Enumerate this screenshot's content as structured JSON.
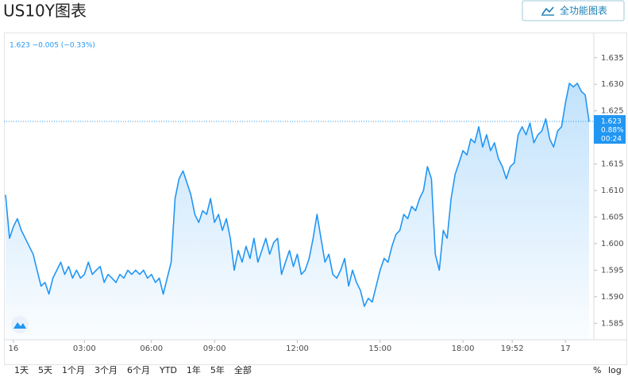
{
  "header": {
    "title": "US10Y图表",
    "button_label": "全功能图表"
  },
  "toolbar": {
    "ranges": [
      "1天",
      "5天",
      "1个月",
      "3个月",
      "6个月",
      "YTD",
      "1年",
      "5年",
      "全部"
    ],
    "percent": "%",
    "log": "log"
  },
  "chart_data": {
    "type": "line",
    "legend_text": "1.623 −0.005 (−0.33%)",
    "price_tag": [
      "1.623",
      "0.88%",
      "00:24"
    ],
    "xlim": [
      -0.4,
      149.2
    ],
    "xticks": [
      {
        "value": 2,
        "label": "16"
      },
      {
        "value": 20,
        "label": "03:00"
      },
      {
        "value": 37,
        "label": "06:00"
      },
      {
        "value": 53,
        "label": "09:00"
      },
      {
        "value": 74,
        "label": "12:00"
      },
      {
        "value": 95,
        "label": "15:00"
      },
      {
        "value": 116,
        "label": "18:00"
      },
      {
        "value": 128.5,
        "label": "19:52"
      },
      {
        "value": 142,
        "label": "17"
      }
    ],
    "ylim": [
      1.5819,
      1.6396
    ],
    "yticks": [
      1.585,
      {
        "value": 1.59,
        "label": "1.590"
      },
      1.595,
      {
        "value": 1.6,
        "label": "1.600"
      },
      1.605,
      {
        "value": 1.61,
        "label": "1.610"
      },
      1.615,
      {
        "value": 1.62,
        "label": "1.620"
      },
      1.625,
      {
        "value": 1.63,
        "label": "1.630"
      },
      1.635
    ],
    "series": [
      {
        "name": "US10Y",
        "color": "#2196f3",
        "values": [
          1.6092,
          1.601,
          1.6032,
          1.6047,
          1.6025,
          1.601,
          1.5995,
          1.598,
          1.595,
          1.592,
          1.5927,
          1.5905,
          1.5935,
          1.595,
          1.5965,
          1.5942,
          1.5957,
          1.5935,
          1.595,
          1.5935,
          1.5942,
          1.5965,
          1.5942,
          1.595,
          1.5957,
          1.5927,
          1.5942,
          1.5935,
          1.5927,
          1.5942,
          1.5935,
          1.595,
          1.5942,
          1.595,
          1.5942,
          1.595,
          1.5935,
          1.5942,
          1.5927,
          1.5935,
          1.5905,
          1.5935,
          1.5965,
          1.6085,
          1.6122,
          1.6137,
          1.6115,
          1.6092,
          1.6055,
          1.604,
          1.6062,
          1.6055,
          1.6085,
          1.604,
          1.6055,
          1.6025,
          1.6047,
          1.601,
          1.595,
          1.5987,
          1.5965,
          1.5995,
          1.5972,
          1.601,
          1.5965,
          1.5987,
          1.601,
          1.598,
          1.6002,
          1.601,
          1.5942,
          1.5965,
          1.5987,
          1.5957,
          1.598,
          1.5942,
          1.595,
          1.5972,
          1.601,
          1.6055,
          1.601,
          1.5965,
          1.598,
          1.5942,
          1.5935,
          1.595,
          1.5972,
          1.592,
          1.595,
          1.5927,
          1.5912,
          1.5882,
          1.5897,
          1.589,
          1.592,
          1.595,
          1.5972,
          1.5965,
          1.5995,
          1.6017,
          1.6025,
          1.6055,
          1.6047,
          1.607,
          1.6062,
          1.6085,
          1.61,
          1.6145,
          1.6122,
          1.598,
          1.595,
          1.6025,
          1.601,
          1.6085,
          1.613,
          1.6152,
          1.6175,
          1.6167,
          1.6197,
          1.619,
          1.622,
          1.6182,
          1.6205,
          1.6175,
          1.619,
          1.616,
          1.6145,
          1.6122,
          1.6145,
          1.6152,
          1.6205,
          1.622,
          1.6205,
          1.6227,
          1.619,
          1.6205,
          1.6212,
          1.6235,
          1.6197,
          1.6182,
          1.6212,
          1.622,
          1.6265,
          1.6302,
          1.6295,
          1.6302,
          1.6287,
          1.628,
          1.623
        ]
      }
    ]
  }
}
